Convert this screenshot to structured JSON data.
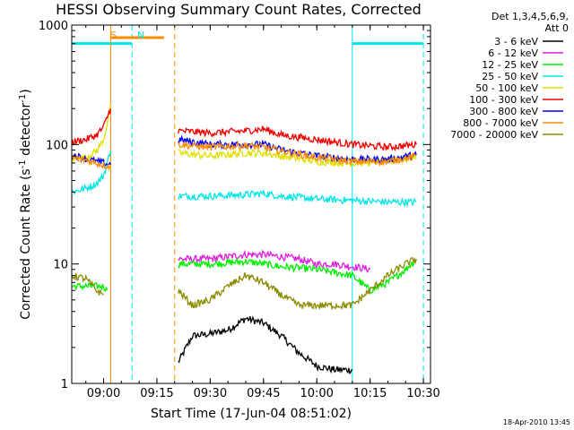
{
  "chart_data": {
    "type": "line",
    "title": "HESSI Observing Summary Count Rates, Corrected",
    "xlabel": "Start Time (17-Jun-04 08:51:02)",
    "ylabel_main": "Corrected Count Rate (s",
    "ylabel_sup1": "-1",
    "ylabel_mid": " detector",
    "ylabel_sup2": "-1",
    "ylabel_end": ")",
    "y_scale": "log",
    "ylim": [
      1,
      1000
    ],
    "xlim": [
      "08:51:02",
      "10:32:00"
    ],
    "x_ticks": [
      "09:00",
      "09:15",
      "09:30",
      "09:45",
      "10:00",
      "10:15",
      "10:30"
    ],
    "y_ticks": [
      "1",
      "10",
      "100",
      "1000"
    ],
    "grid": false,
    "legend_placement": "right",
    "legend_header": [
      "Det 1,3,4,5,6,9,",
      "Att 0"
    ],
    "timestamp": "18-Apr-2010 13:45",
    "annotations": [
      {
        "label": "S",
        "color": "#ff8c00",
        "x_start": "09:02",
        "x_end": "09:17"
      },
      {
        "label": "N",
        "color": "#00e5e5",
        "x_start": "08:51",
        "x_end": "09:08"
      }
    ],
    "night_lines": {
      "color": "#00e5e5",
      "level": 700,
      "intervals": [
        [
          "08:51",
          "09:08"
        ],
        [
          "10:10",
          "10:30"
        ]
      ],
      "dashed": [
        "09:08",
        "10:30"
      ],
      "solid": [
        "10:10"
      ]
    },
    "saa_lines": {
      "color": "#ff8c00",
      "dashed": [
        "09:20"
      ],
      "solid": [
        "09:02"
      ]
    },
    "gap": [
      "09:05",
      "09:21"
    ],
    "series": [
      {
        "name": "3 - 6 keV",
        "color": "#000000",
        "points": [
          [
            "09:21",
            1.5
          ],
          [
            "09:25",
            2.5
          ],
          [
            "09:30",
            2.6
          ],
          [
            "09:35",
            2.8
          ],
          [
            "09:40",
            3.5
          ],
          [
            "09:45",
            3.2
          ],
          [
            "09:50",
            2.5
          ],
          [
            "09:55",
            1.8
          ],
          [
            "10:00",
            1.4
          ],
          [
            "10:05",
            1.3
          ],
          [
            "10:10",
            1.3
          ]
        ]
      },
      {
        "name": "6 - 12 keV",
        "color": "#e020e0",
        "points": [
          [
            "09:21",
            11
          ],
          [
            "09:25",
            11
          ],
          [
            "09:30",
            11
          ],
          [
            "09:35",
            11.5
          ],
          [
            "09:40",
            12
          ],
          [
            "09:45",
            12
          ],
          [
            "09:50",
            11.5
          ],
          [
            "09:55",
            11
          ],
          [
            "10:00",
            10
          ],
          [
            "10:05",
            10
          ],
          [
            "10:10",
            9.5
          ],
          [
            "10:15",
            9
          ]
        ]
      },
      {
        "name": "12 - 25 keV",
        "color": "#00ee00",
        "points": [
          [
            "08:51",
            6.5
          ],
          [
            "09:00",
            6.5
          ],
          [
            "09:01",
            6
          ],
          [
            "09:21",
            10
          ],
          [
            "09:30",
            10
          ],
          [
            "09:40",
            10.5
          ],
          [
            "09:45",
            10
          ],
          [
            "09:50",
            9.5
          ],
          [
            "10:00",
            9
          ],
          [
            "10:05",
            8.5
          ],
          [
            "10:10",
            8
          ],
          [
            "10:15",
            6
          ],
          [
            "10:20",
            7
          ],
          [
            "10:25",
            9
          ],
          [
            "10:28",
            11
          ]
        ]
      },
      {
        "name": "25 - 50 keV",
        "color": "#00e5e5",
        "points": [
          [
            "08:51",
            40
          ],
          [
            "08:55",
            43
          ],
          [
            "08:58",
            47
          ],
          [
            "09:00",
            55
          ],
          [
            "09:01",
            70
          ],
          [
            "09:02",
            90
          ],
          [
            "09:21",
            37
          ],
          [
            "09:30",
            37
          ],
          [
            "09:40",
            38
          ],
          [
            "09:45",
            39
          ],
          [
            "09:50",
            37
          ],
          [
            "10:00",
            35
          ],
          [
            "10:10",
            34
          ],
          [
            "10:20",
            33
          ],
          [
            "10:28",
            33
          ]
        ]
      },
      {
        "name": "50 - 100 keV",
        "color": "#e0e000",
        "points": [
          [
            "08:51",
            75
          ],
          [
            "08:55",
            78
          ],
          [
            "08:58",
            88
          ],
          [
            "09:00",
            110
          ],
          [
            "09:01",
            150
          ],
          [
            "09:02",
            220
          ],
          [
            "09:21",
            85
          ],
          [
            "09:30",
            80
          ],
          [
            "09:40",
            85
          ],
          [
            "09:45",
            85
          ],
          [
            "09:50",
            80
          ],
          [
            "10:00",
            72
          ],
          [
            "10:10",
            70
          ],
          [
            "10:20",
            72
          ],
          [
            "10:28",
            78
          ]
        ]
      },
      {
        "name": "100 - 300 keV",
        "color": "#ee0000",
        "points": [
          [
            "08:51",
            105
          ],
          [
            "08:55",
            110
          ],
          [
            "08:58",
            120
          ],
          [
            "09:00",
            140
          ],
          [
            "09:01",
            170
          ],
          [
            "09:02",
            200
          ],
          [
            "09:21",
            130
          ],
          [
            "09:30",
            125
          ],
          [
            "09:40",
            130
          ],
          [
            "09:45",
            135
          ],
          [
            "09:50",
            120
          ],
          [
            "10:00",
            110
          ],
          [
            "10:10",
            100
          ],
          [
            "10:20",
            95
          ],
          [
            "10:28",
            100
          ]
        ]
      },
      {
        "name": "300 - 800 keV",
        "color": "#0000ee",
        "points": [
          [
            "08:51",
            82
          ],
          [
            "08:55",
            76
          ],
          [
            "08:58",
            72
          ],
          [
            "09:02",
            68
          ],
          [
            "09:21",
            110
          ],
          [
            "09:30",
            100
          ],
          [
            "09:40",
            100
          ],
          [
            "09:45",
            100
          ],
          [
            "09:50",
            90
          ],
          [
            "10:00",
            80
          ],
          [
            "10:10",
            75
          ],
          [
            "10:20",
            75
          ],
          [
            "10:28",
            82
          ]
        ]
      },
      {
        "name": "800 - 7000 keV",
        "color": "#ff8c00",
        "points": [
          [
            "08:51",
            78
          ],
          [
            "08:55",
            74
          ],
          [
            "08:58",
            70
          ],
          [
            "09:02",
            65
          ],
          [
            "09:21",
            100
          ],
          [
            "09:30",
            95
          ],
          [
            "09:40",
            98
          ],
          [
            "09:45",
            95
          ],
          [
            "09:50",
            88
          ],
          [
            "10:00",
            78
          ],
          [
            "10:10",
            72
          ],
          [
            "10:20",
            72
          ],
          [
            "10:28",
            80
          ]
        ]
      },
      {
        "name": "7000 - 20000 keV",
        "color": "#8b8b00",
        "points": [
          [
            "08:51",
            8
          ],
          [
            "08:55",
            7.5
          ],
          [
            "08:58",
            6
          ],
          [
            "09:00",
            5.5
          ],
          [
            "09:21",
            6
          ],
          [
            "09:25",
            4.5
          ],
          [
            "09:30",
            5
          ],
          [
            "09:35",
            6.5
          ],
          [
            "09:40",
            8
          ],
          [
            "09:45",
            7
          ],
          [
            "09:50",
            5.5
          ],
          [
            "09:55",
            4.5
          ],
          [
            "10:00",
            4.5
          ],
          [
            "10:05",
            4.5
          ],
          [
            "10:10",
            4.5
          ],
          [
            "10:15",
            6
          ],
          [
            "10:20",
            8
          ],
          [
            "10:25",
            10
          ],
          [
            "10:28",
            11
          ]
        ]
      }
    ]
  }
}
